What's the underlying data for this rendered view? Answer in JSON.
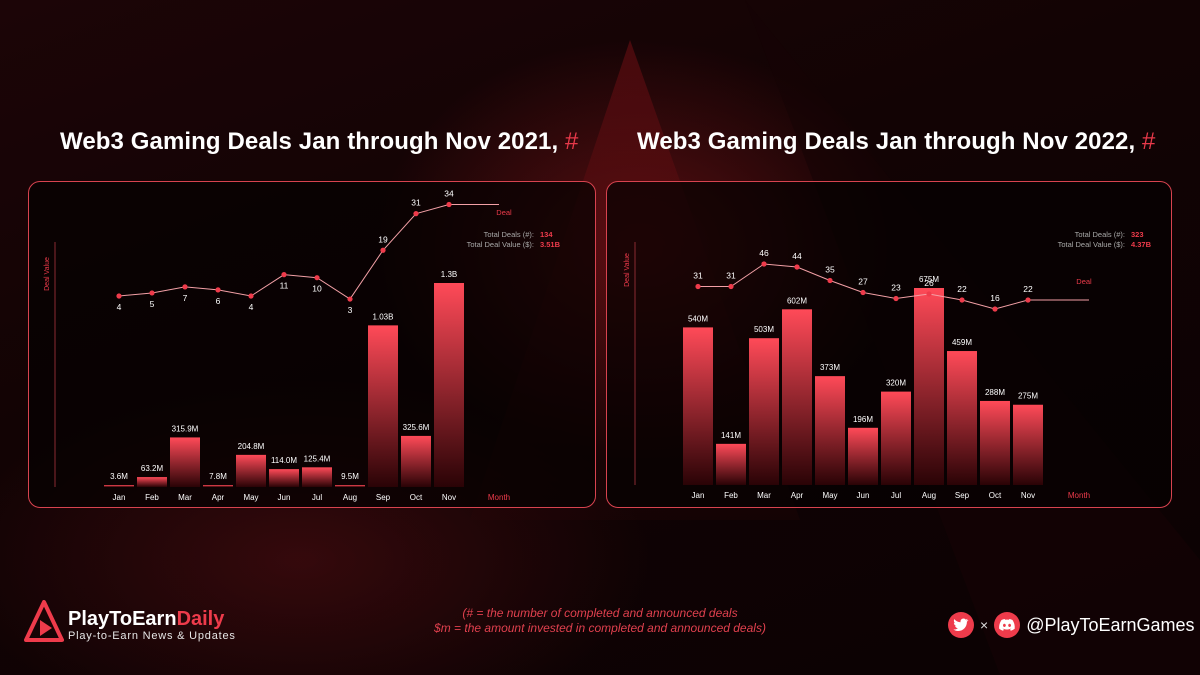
{
  "titles": {
    "chart2021": "Web3 Gaming Deals Jan through Nov 2021,",
    "chart2022": "Web3 Gaming Deals Jan through Nov 2022,",
    "hash": "#"
  },
  "colors": {
    "accent": "#ee3b4b",
    "bar_top": "#ff4a58",
    "bar_bottom": "#2a0306",
    "line": "#f3a0a6",
    "panel_border": "#d8434f"
  },
  "chart_data": [
    {
      "type": "bar",
      "title": "Web3 Gaming Deals Jan through Nov 2021, #",
      "xlabel": "Month",
      "ylabel": "Deal Value",
      "categories": [
        "Jan",
        "Feb",
        "Mar",
        "Apr",
        "May",
        "Jun",
        "Jul",
        "Aug",
        "Sep",
        "Oct",
        "Nov"
      ],
      "series": [
        {
          "name": "Deal Value",
          "values": [
            3.6,
            63.2,
            315.9,
            7.8,
            204.8,
            114.0,
            125.4,
            9.5,
            1030,
            325.6,
            1300
          ],
          "labels": [
            "3.6M",
            "63.2M",
            "315.9M",
            "7.8M",
            "204.8M",
            "114.0M",
            "125.4M",
            "9.5M",
            "1.03B",
            "325.6M",
            "1.3B"
          ]
        },
        {
          "name": "Deal",
          "type": "line",
          "values": [
            4,
            5,
            7,
            6,
            4,
            11,
            10,
            3,
            19,
            31,
            34
          ]
        }
      ],
      "totals": {
        "deals_label": "Total Deals (#):",
        "deals_value": "134",
        "value_label": "Total Deal Value ($):",
        "value_value": "3.51B"
      },
      "legend_position": "top-right",
      "grid": false
    },
    {
      "type": "bar",
      "title": "Web3 Gaming Deals Jan through Nov 2022, #",
      "xlabel": "Month",
      "ylabel": "Deal Value",
      "categories": [
        "Jan",
        "Feb",
        "Mar",
        "Apr",
        "May",
        "Jun",
        "Jul",
        "Aug",
        "Sep",
        "Oct",
        "Nov"
      ],
      "series": [
        {
          "name": "Deal Value",
          "values": [
            540,
            141,
            503,
            602,
            373,
            196,
            320,
            675,
            459,
            288,
            275
          ],
          "labels": [
            "540M",
            "141M",
            "503M",
            "602M",
            "373M",
            "196M",
            "320M",
            "675M",
            "459M",
            "288M",
            "275M"
          ]
        },
        {
          "name": "Deal",
          "type": "line",
          "values": [
            31,
            31,
            46,
            44,
            35,
            27,
            23,
            26,
            22,
            16,
            22
          ]
        }
      ],
      "totals": {
        "deals_label": "Total Deals (#):",
        "deals_value": "323",
        "value_label": "Total Deal Value ($):",
        "value_value": "4.37B"
      },
      "legend_position": "right",
      "grid": false
    }
  ],
  "footer": {
    "brand_part1": "PlayToEarn",
    "brand_part2": "Daily",
    "tagline": "Play-to-Earn News & Updates",
    "footnote_line1": "(# = the number of completed and announced deals",
    "footnote_line2": "$m = the amount invested in completed and announced deals)",
    "times": "×",
    "handle": "@PlayToEarnGames",
    "icons": [
      "twitter-icon",
      "discord-icon"
    ]
  }
}
